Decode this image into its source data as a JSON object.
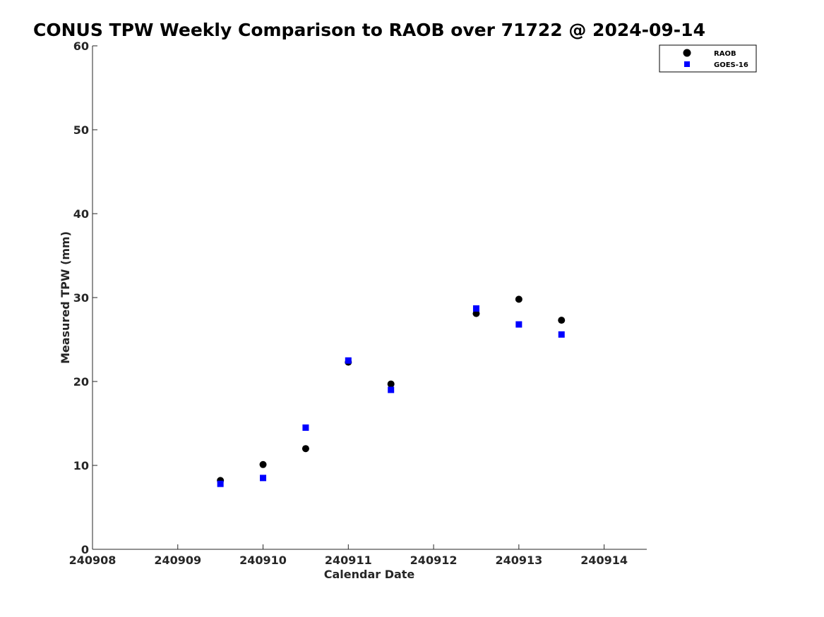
{
  "chart_data": {
    "type": "scatter",
    "title": "CONUS TPW Weekly Comparison to RAOB over 71722 @ 2024-09-14",
    "xlabel": "Calendar Date",
    "ylabel": "Measured TPW (mm)",
    "xlim": [
      240908,
      240914.5
    ],
    "ylim": [
      0,
      60
    ],
    "xticks": [
      240908,
      240909,
      240910,
      240911,
      240912,
      240913,
      240914
    ],
    "xtick_labels": [
      "240908",
      "240909",
      "240910",
      "240911",
      "240912",
      "240913",
      "240914"
    ],
    "yticks": [
      0,
      10,
      20,
      30,
      40,
      50,
      60
    ],
    "ytick_labels": [
      "0",
      "10",
      "20",
      "30",
      "40",
      "50",
      "60"
    ],
    "grid": false,
    "legend_position": "top-right",
    "series": [
      {
        "name": "RAOB",
        "marker": "circle",
        "color": "#000000",
        "x": [
          240909.5,
          240910,
          240910.5,
          240911,
          240911.5,
          240912.5,
          240913,
          240913.5
        ],
        "y": [
          8.2,
          10.1,
          12.0,
          22.3,
          19.7,
          28.1,
          29.8,
          27.3
        ]
      },
      {
        "name": "GOES-16",
        "marker": "square",
        "color": "#0000ff",
        "x": [
          240909.5,
          240910,
          240910.5,
          240911,
          240911.5,
          240912.5,
          240913,
          240913.5
        ],
        "y": [
          7.8,
          8.5,
          14.5,
          22.5,
          19.0,
          28.7,
          26.8,
          25.6
        ]
      }
    ]
  }
}
